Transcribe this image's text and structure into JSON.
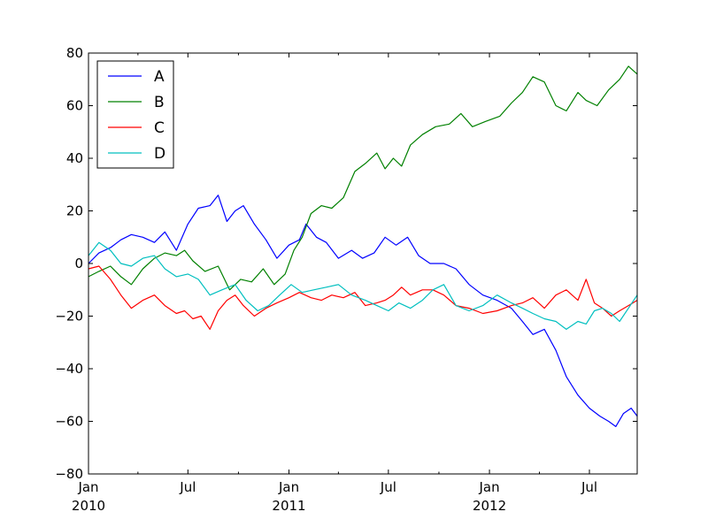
{
  "chart_data": {
    "type": "line",
    "title": "",
    "xlabel": "",
    "ylabel": "",
    "xlim": [
      "2010-01-01",
      "2012-09-26"
    ],
    "ylim": [
      -80,
      80
    ],
    "yticks": [
      -80,
      -60,
      -40,
      -20,
      0,
      20,
      40,
      60,
      80
    ],
    "ytick_labels": [
      "−80",
      "−60",
      "−40",
      "−20",
      "0",
      "20",
      "40",
      "60",
      "80"
    ],
    "xticks_major": [
      {
        "date": "2010-01-01",
        "label": "Jan",
        "sublabel": "2010"
      },
      {
        "date": "2010-07-01",
        "label": "Jul",
        "sublabel": ""
      },
      {
        "date": "2011-01-01",
        "label": "Jan",
        "sublabel": "2011"
      },
      {
        "date": "2011-07-01",
        "label": "Jul",
        "sublabel": ""
      },
      {
        "date": "2012-01-01",
        "label": "Jan",
        "sublabel": "2012"
      },
      {
        "date": "2012-07-01",
        "label": "Jul",
        "sublabel": ""
      }
    ],
    "grid": false,
    "legend_position": "top-left",
    "series": [
      {
        "name": "A",
        "color": "#0000ff",
        "points": [
          [
            "2010-01-01",
            0
          ],
          [
            "2010-01-20",
            4
          ],
          [
            "2010-02-10",
            6
          ],
          [
            "2010-03-01",
            9
          ],
          [
            "2010-03-20",
            11
          ],
          [
            "2010-04-10",
            10
          ],
          [
            "2010-05-01",
            8
          ],
          [
            "2010-05-20",
            12
          ],
          [
            "2010-06-10",
            5
          ],
          [
            "2010-07-01",
            15
          ],
          [
            "2010-07-20",
            21
          ],
          [
            "2010-08-10",
            22
          ],
          [
            "2010-08-25",
            26
          ],
          [
            "2010-09-10",
            16
          ],
          [
            "2010-09-25",
            20
          ],
          [
            "2010-10-10",
            22
          ],
          [
            "2010-10-30",
            15
          ],
          [
            "2010-11-20",
            9
          ],
          [
            "2010-12-10",
            2
          ],
          [
            "2011-01-01",
            7
          ],
          [
            "2011-01-20",
            9
          ],
          [
            "2011-02-01",
            15
          ],
          [
            "2011-02-20",
            10
          ],
          [
            "2011-03-10",
            8
          ],
          [
            "2011-04-01",
            2
          ],
          [
            "2011-04-25",
            5
          ],
          [
            "2011-05-15",
            2
          ],
          [
            "2011-06-05",
            4
          ],
          [
            "2011-06-25",
            10
          ],
          [
            "2011-07-15",
            7
          ],
          [
            "2011-08-05",
            10
          ],
          [
            "2011-08-25",
            3
          ],
          [
            "2011-09-15",
            0
          ],
          [
            "2011-10-10",
            0
          ],
          [
            "2011-11-01",
            -2
          ],
          [
            "2011-11-25",
            -8
          ],
          [
            "2011-12-20",
            -12
          ],
          [
            "2012-01-15",
            -14
          ],
          [
            "2012-02-10",
            -17
          ],
          [
            "2012-03-01",
            -22
          ],
          [
            "2012-03-20",
            -27
          ],
          [
            "2012-04-10",
            -25
          ],
          [
            "2012-05-01",
            -33
          ],
          [
            "2012-05-20",
            -43
          ],
          [
            "2012-06-10",
            -50
          ],
          [
            "2012-07-01",
            -55
          ],
          [
            "2012-07-20",
            -58
          ],
          [
            "2012-08-05",
            -60
          ],
          [
            "2012-08-18",
            -62
          ],
          [
            "2012-09-01",
            -57
          ],
          [
            "2012-09-15",
            -55
          ],
          [
            "2012-09-26",
            -58
          ]
        ]
      },
      {
        "name": "B",
        "color": "#008000",
        "points": [
          [
            "2010-01-01",
            -5
          ],
          [
            "2010-01-20",
            -3
          ],
          [
            "2010-02-10",
            -1
          ],
          [
            "2010-03-01",
            -5
          ],
          [
            "2010-03-20",
            -8
          ],
          [
            "2010-04-10",
            -2
          ],
          [
            "2010-05-01",
            2
          ],
          [
            "2010-05-20",
            4
          ],
          [
            "2010-06-10",
            3
          ],
          [
            "2010-06-25",
            5
          ],
          [
            "2010-07-10",
            1
          ],
          [
            "2010-08-01",
            -3
          ],
          [
            "2010-08-25",
            -1
          ],
          [
            "2010-09-15",
            -10
          ],
          [
            "2010-10-05",
            -6
          ],
          [
            "2010-10-25",
            -7
          ],
          [
            "2010-11-15",
            -2
          ],
          [
            "2010-12-05",
            -8
          ],
          [
            "2010-12-25",
            -4
          ],
          [
            "2011-01-10",
            5
          ],
          [
            "2011-01-25",
            10
          ],
          [
            "2011-02-10",
            19
          ],
          [
            "2011-03-01",
            22
          ],
          [
            "2011-03-20",
            21
          ],
          [
            "2011-04-10",
            25
          ],
          [
            "2011-05-01",
            35
          ],
          [
            "2011-05-20",
            38
          ],
          [
            "2011-06-10",
            42
          ],
          [
            "2011-06-25",
            36
          ],
          [
            "2011-07-10",
            40
          ],
          [
            "2011-07-25",
            37
          ],
          [
            "2011-08-10",
            45
          ],
          [
            "2011-09-01",
            49
          ],
          [
            "2011-09-25",
            52
          ],
          [
            "2011-10-20",
            53
          ],
          [
            "2011-11-10",
            57
          ],
          [
            "2011-12-01",
            52
          ],
          [
            "2011-12-25",
            54
          ],
          [
            "2012-01-20",
            56
          ],
          [
            "2012-02-10",
            61
          ],
          [
            "2012-03-01",
            65
          ],
          [
            "2012-03-20",
            71
          ],
          [
            "2012-04-10",
            69
          ],
          [
            "2012-05-01",
            60
          ],
          [
            "2012-05-20",
            58
          ],
          [
            "2012-06-10",
            65
          ],
          [
            "2012-06-25",
            62
          ],
          [
            "2012-07-15",
            60
          ],
          [
            "2012-08-05",
            66
          ],
          [
            "2012-08-25",
            70
          ],
          [
            "2012-09-10",
            75
          ],
          [
            "2012-09-26",
            72
          ]
        ]
      },
      {
        "name": "C",
        "color": "#ff0000",
        "points": [
          [
            "2010-01-01",
            -2
          ],
          [
            "2010-01-20",
            -1
          ],
          [
            "2010-02-10",
            -6
          ],
          [
            "2010-03-01",
            -12
          ],
          [
            "2010-03-20",
            -17
          ],
          [
            "2010-04-10",
            -14
          ],
          [
            "2010-05-01",
            -12
          ],
          [
            "2010-05-20",
            -16
          ],
          [
            "2010-06-10",
            -19
          ],
          [
            "2010-06-25",
            -18
          ],
          [
            "2010-07-10",
            -21
          ],
          [
            "2010-07-25",
            -20
          ],
          [
            "2010-08-10",
            -25
          ],
          [
            "2010-08-25",
            -18
          ],
          [
            "2010-09-10",
            -14
          ],
          [
            "2010-09-25",
            -12
          ],
          [
            "2010-10-10",
            -16
          ],
          [
            "2010-10-30",
            -20
          ],
          [
            "2010-11-20",
            -17
          ],
          [
            "2010-12-10",
            -15
          ],
          [
            "2011-01-01",
            -13
          ],
          [
            "2011-01-20",
            -11
          ],
          [
            "2011-02-10",
            -13
          ],
          [
            "2011-03-01",
            -14
          ],
          [
            "2011-03-20",
            -12
          ],
          [
            "2011-04-10",
            -13
          ],
          [
            "2011-05-01",
            -11
          ],
          [
            "2011-05-20",
            -16
          ],
          [
            "2011-06-10",
            -15
          ],
          [
            "2011-06-25",
            -14
          ],
          [
            "2011-07-10",
            -12
          ],
          [
            "2011-07-25",
            -9
          ],
          [
            "2011-08-10",
            -12
          ],
          [
            "2011-09-01",
            -10
          ],
          [
            "2011-09-20",
            -10
          ],
          [
            "2011-10-10",
            -12
          ],
          [
            "2011-11-01",
            -16
          ],
          [
            "2011-11-25",
            -17
          ],
          [
            "2011-12-20",
            -19
          ],
          [
            "2012-01-15",
            -18
          ],
          [
            "2012-02-10",
            -16
          ],
          [
            "2012-03-01",
            -15
          ],
          [
            "2012-03-20",
            -13
          ],
          [
            "2012-04-10",
            -17
          ],
          [
            "2012-05-01",
            -12
          ],
          [
            "2012-05-20",
            -10
          ],
          [
            "2012-06-10",
            -14
          ],
          [
            "2012-06-25",
            -6
          ],
          [
            "2012-07-10",
            -15
          ],
          [
            "2012-07-25",
            -17
          ],
          [
            "2012-08-10",
            -20
          ],
          [
            "2012-08-25",
            -18
          ],
          [
            "2012-09-10",
            -16
          ],
          [
            "2012-09-26",
            -14
          ]
        ]
      },
      {
        "name": "D",
        "color": "#00bfbf",
        "points": [
          [
            "2010-01-01",
            3
          ],
          [
            "2010-01-20",
            8
          ],
          [
            "2010-02-10",
            5
          ],
          [
            "2010-03-01",
            0
          ],
          [
            "2010-03-20",
            -1
          ],
          [
            "2010-04-10",
            2
          ],
          [
            "2010-05-01",
            3
          ],
          [
            "2010-05-20",
            -2
          ],
          [
            "2010-06-10",
            -5
          ],
          [
            "2010-07-01",
            -4
          ],
          [
            "2010-07-20",
            -6
          ],
          [
            "2010-08-10",
            -12
          ],
          [
            "2010-09-01",
            -10
          ],
          [
            "2010-09-25",
            -8
          ],
          [
            "2010-10-15",
            -14
          ],
          [
            "2010-11-05",
            -18
          ],
          [
            "2010-11-25",
            -16
          ],
          [
            "2010-12-15",
            -12
          ],
          [
            "2011-01-05",
            -8
          ],
          [
            "2011-01-25",
            -11
          ],
          [
            "2011-02-15",
            -10
          ],
          [
            "2011-03-10",
            -9
          ],
          [
            "2011-04-01",
            -8
          ],
          [
            "2011-04-25",
            -12
          ],
          [
            "2011-05-20",
            -14
          ],
          [
            "2011-06-10",
            -16
          ],
          [
            "2011-07-01",
            -18
          ],
          [
            "2011-07-20",
            -15
          ],
          [
            "2011-08-10",
            -17
          ],
          [
            "2011-09-01",
            -14
          ],
          [
            "2011-09-20",
            -10
          ],
          [
            "2011-10-10",
            -8
          ],
          [
            "2011-11-01",
            -16
          ],
          [
            "2011-11-25",
            -18
          ],
          [
            "2011-12-20",
            -16
          ],
          [
            "2012-01-15",
            -12
          ],
          [
            "2012-02-10",
            -15
          ],
          [
            "2012-03-01",
            -17
          ],
          [
            "2012-03-20",
            -19
          ],
          [
            "2012-04-10",
            -21
          ],
          [
            "2012-05-01",
            -22
          ],
          [
            "2012-05-20",
            -25
          ],
          [
            "2012-06-10",
            -22
          ],
          [
            "2012-06-25",
            -23
          ],
          [
            "2012-07-10",
            -18
          ],
          [
            "2012-07-25",
            -17
          ],
          [
            "2012-08-10",
            -19
          ],
          [
            "2012-08-25",
            -22
          ],
          [
            "2012-09-10",
            -17
          ],
          [
            "2012-09-26",
            -12
          ]
        ]
      }
    ]
  }
}
